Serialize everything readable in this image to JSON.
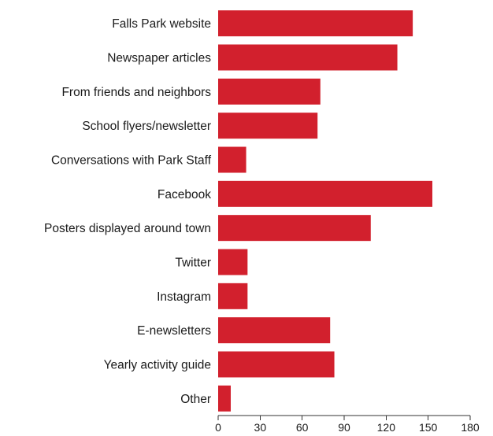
{
  "chart_data": {
    "type": "bar",
    "orientation": "horizontal",
    "categories": [
      "Falls Park website",
      "Newspaper articles",
      "From friends and neighbors",
      "School flyers/newsletter",
      "Conversations with Park Staff",
      "Facebook",
      "Posters displayed around town",
      "Twitter",
      "Instagram",
      "E-newsletters",
      "Yearly activity guide",
      "Other"
    ],
    "values": [
      139,
      128,
      73,
      71,
      20,
      153,
      109,
      21,
      21,
      80,
      83,
      9
    ],
    "xlim": [
      0,
      180
    ],
    "xticks": [
      "0",
      "30",
      "60",
      "90",
      "120",
      "150",
      "180"
    ],
    "bar_color": "#d2202d",
    "grid": false,
    "title": "",
    "xlabel": "",
    "ylabel": ""
  }
}
